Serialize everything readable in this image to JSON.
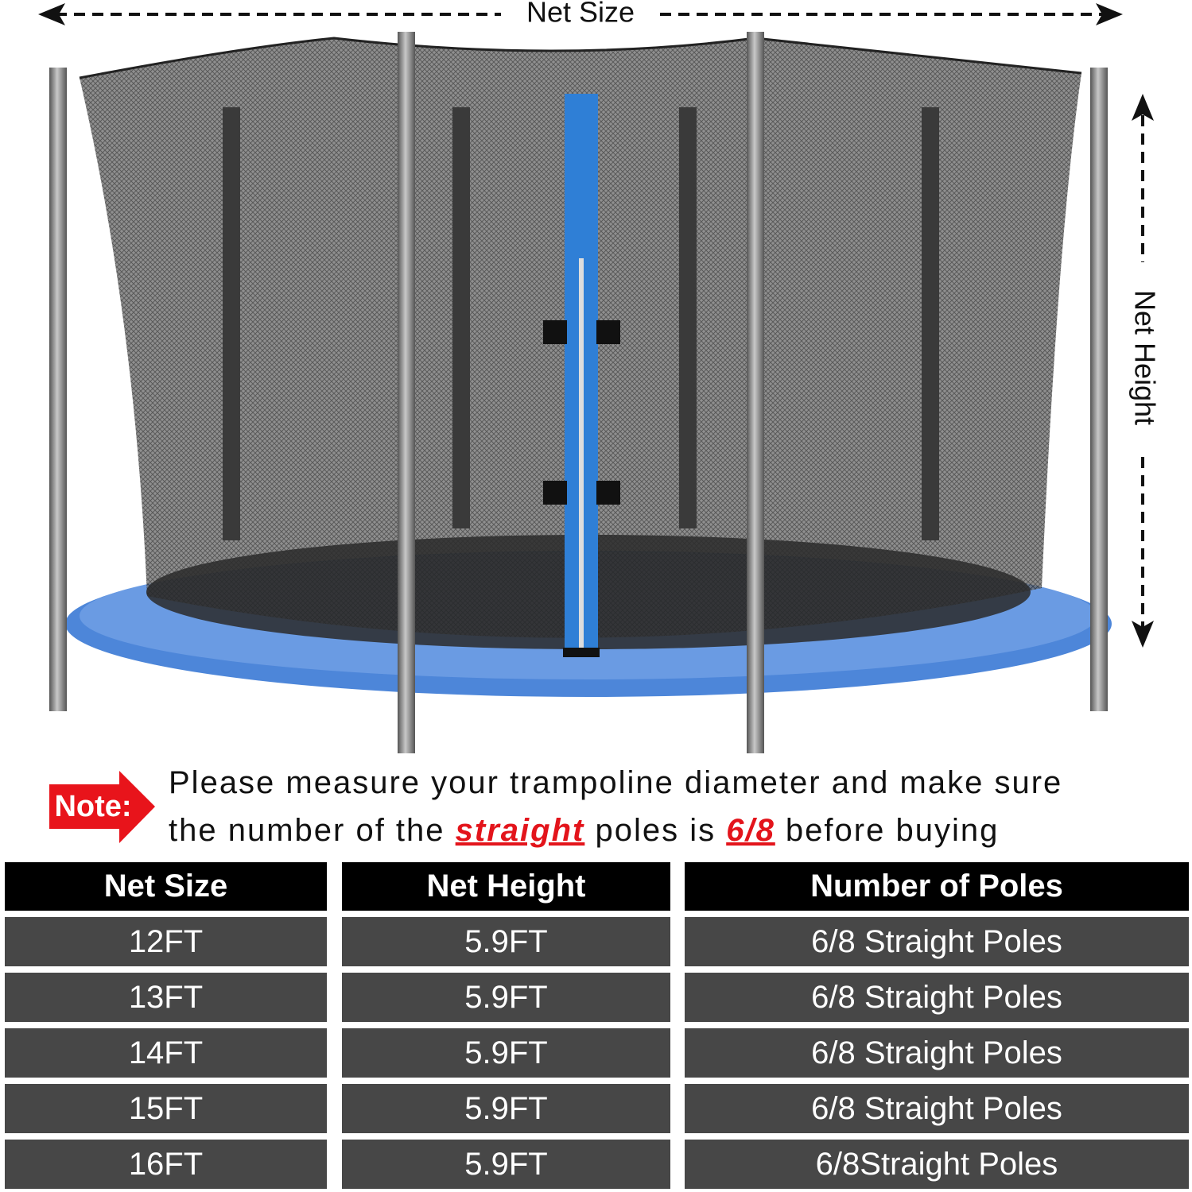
{
  "dimensions": {
    "width_label": "Net Size",
    "height_label": "Net Height"
  },
  "note": {
    "badge": "Note:",
    "parts": [
      "Please measure your trampoline diameter and make sure",
      "the number of the ",
      "straight",
      " poles is ",
      "6/8",
      " before buying"
    ]
  },
  "table": {
    "header": [
      "Net Size",
      "Net Height",
      "Number of Poles"
    ],
    "rows": [
      [
        "12FT",
        "5.9FT",
        "6/8 Straight Poles"
      ],
      [
        "13FT",
        "5.9FT",
        "6/8 Straight Poles"
      ],
      [
        "14FT",
        "5.9FT",
        "6/8 Straight Poles"
      ],
      [
        "15FT",
        "5.9FT",
        "6/8 Straight Poles"
      ],
      [
        "16FT",
        "5.9FT",
        "6/8Straight Poles"
      ]
    ]
  }
}
